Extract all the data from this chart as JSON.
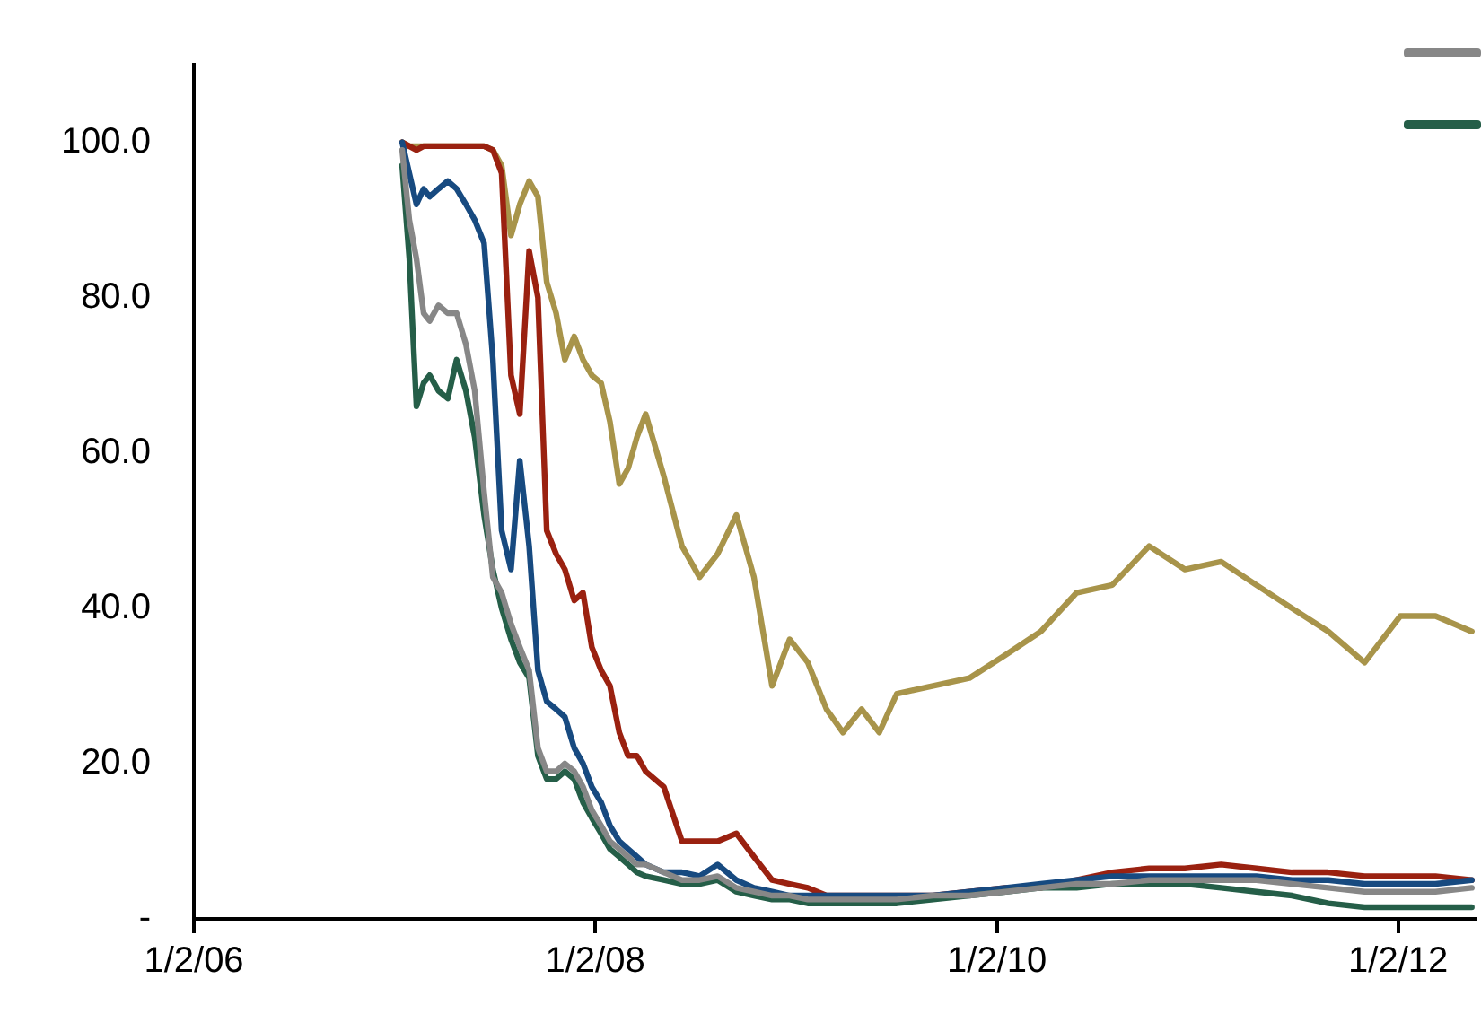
{
  "chart_data": {
    "type": "line",
    "x": [
      "2007-01-16",
      "2007-01-29",
      "2007-02-11",
      "2007-02-24",
      "2007-03-07",
      "2007-03-23",
      "2007-04-09",
      "2007-04-25",
      "2007-05-12",
      "2007-05-28",
      "2007-06-14",
      "2007-06-30",
      "2007-07-16",
      "2007-08-02",
      "2007-08-18",
      "2007-09-04",
      "2007-09-20",
      "2007-10-06",
      "2007-10-23",
      "2007-11-08",
      "2007-11-25",
      "2007-12-11",
      "2007-12-27",
      "2008-01-13",
      "2008-01-29",
      "2008-02-15",
      "2008-03-02",
      "2008-03-18",
      "2008-04-03",
      "2008-05-06",
      "2008-06-08",
      "2008-07-10",
      "2008-08-12",
      "2008-09-15",
      "2008-10-17",
      "2008-11-19",
      "2008-12-21",
      "2009-01-23",
      "2009-02-26",
      "2009-03-28",
      "2009-05-01",
      "2009-06-02",
      "2009-07-04",
      "2009-09-08",
      "2009-11-13",
      "2010-01-18",
      "2010-03-23",
      "2010-05-27",
      "2010-07-31",
      "2010-10-06",
      "2010-12-10",
      "2011-02-14",
      "2011-04-19",
      "2011-06-23",
      "2011-08-28",
      "2011-11-02",
      "2012-01-06",
      "2012-03-10",
      "2012-05-15"
    ],
    "series": [
      {
        "color": "#878787",
        "values": [
          99,
          90,
          85,
          78,
          77,
          79,
          78,
          78,
          74,
          68,
          55,
          44,
          42,
          38,
          35,
          32,
          22,
          19,
          19,
          20,
          19,
          17,
          14,
          12,
          10,
          9,
          8,
          7,
          7,
          6,
          5,
          5,
          5.5,
          4,
          3.5,
          3,
          3,
          2.5,
          2.5,
          2.5,
          2.5,
          2.5,
          2.5,
          3,
          3,
          3.5,
          4,
          4.5,
          4.5,
          5,
          5,
          5,
          5,
          4.5,
          4,
          3.5,
          3.5,
          3.5,
          4
        ]
      },
      {
        "color": "#255e48",
        "values": [
          97,
          85,
          66,
          69,
          70,
          68,
          67,
          72,
          68,
          62,
          52,
          45,
          40,
          36,
          33,
          31,
          21,
          18,
          18,
          19,
          18,
          15,
          13,
          11,
          9,
          8,
          7,
          6,
          5.5,
          5,
          4.5,
          4.5,
          5,
          3.5,
          3,
          2.5,
          2.5,
          2,
          2,
          2,
          2,
          2,
          2,
          2.5,
          3,
          3.5,
          4,
          4,
          4.5,
          4.5,
          4.5,
          4,
          3.5,
          3,
          2,
          1.5,
          1.5,
          1.5,
          1.5
        ]
      },
      {
        "color": "#174a80",
        "values": [
          100,
          96,
          92,
          94,
          93,
          94,
          95,
          94,
          92,
          90,
          87,
          72,
          50,
          45,
          59,
          48,
          32,
          28,
          27,
          26,
          22,
          20,
          17,
          15,
          12,
          10,
          9,
          8,
          7,
          6,
          6,
          5.5,
          7,
          5,
          4,
          3.5,
          3,
          3,
          3,
          3,
          3,
          3,
          3,
          3,
          3.5,
          4,
          4.5,
          5,
          5.5,
          5.5,
          5.5,
          5.5,
          5.5,
          5,
          5,
          4.5,
          4.5,
          4.5,
          5
        ]
      },
      {
        "color": "#9a2110",
        "values": [
          100,
          99.5,
          99,
          99.5,
          99.5,
          99.5,
          99.5,
          99.5,
          99.5,
          99.5,
          99.5,
          99,
          96,
          70,
          65,
          86,
          80,
          50,
          47,
          45,
          41,
          42,
          35,
          32,
          30,
          24,
          21,
          21,
          19,
          17,
          10,
          10,
          10,
          11,
          8,
          5,
          4.5,
          4,
          3,
          3,
          3,
          3,
          3,
          3,
          3.5,
          4,
          4,
          5,
          6,
          6.5,
          6.5,
          7,
          6.5,
          6,
          6,
          5.5,
          5.5,
          5.5,
          5
        ]
      },
      {
        "color": "#a8944a",
        "values": [
          100,
          99.5,
          99.5,
          99.5,
          99.5,
          99.5,
          99.5,
          99.5,
          99.5,
          99.5,
          99.5,
          99,
          97,
          88,
          92,
          95,
          93,
          82,
          78,
          72,
          75,
          72,
          70,
          69,
          64,
          56,
          58,
          62,
          65,
          57,
          48,
          44,
          47,
          52,
          44,
          30,
          36,
          33,
          27,
          24,
          27,
          24,
          29,
          30,
          31,
          34,
          37,
          42,
          43,
          48,
          45,
          46,
          43,
          40,
          37,
          33,
          39,
          39,
          37
        ]
      }
    ],
    "xlim": [
      "2006-01-02",
      "2012-05-22"
    ],
    "xticks": [
      {
        "value": "2006-01-02",
        "label": "1/2/06"
      },
      {
        "value": "2008-01-02",
        "label": "1/2/08"
      },
      {
        "value": "2010-01-02",
        "label": "1/2/10"
      },
      {
        "value": "2012-01-02",
        "label": "1/2/12"
      }
    ],
    "ylim": [
      0,
      110
    ],
    "yticks": [
      {
        "value": 0,
        "label": "-"
      },
      {
        "value": 20,
        "label": "20.0"
      },
      {
        "value": 40,
        "label": "40.0"
      },
      {
        "value": 60,
        "label": "60.0"
      },
      {
        "value": 80,
        "label": "80.0"
      },
      {
        "value": 100,
        "label": "100.0"
      }
    ],
    "grid": false,
    "legend": false,
    "marker": "none",
    "line_style": "solid"
  }
}
